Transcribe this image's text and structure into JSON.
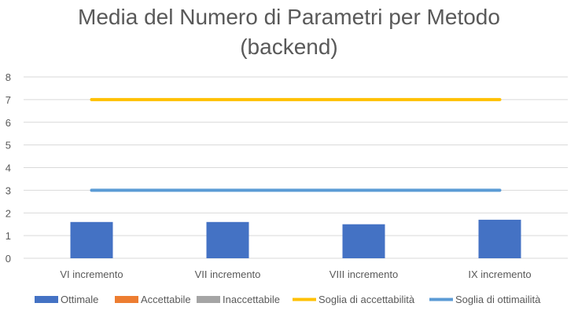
{
  "chart_data": {
    "type": "bar",
    "title": [
      "Media del Numero di Parametri per Metodo",
      "(backend)"
    ],
    "categories": [
      "VI incremento",
      "VII incremento",
      "VIII incremento",
      "IX incremento"
    ],
    "ylim": [
      0,
      8
    ],
    "yticks": [
      0,
      1,
      2,
      3,
      4,
      5,
      6,
      7,
      8
    ],
    "grid": true,
    "legend_position": "bottom",
    "series": [
      {
        "name": "Ottimale",
        "kind": "bar",
        "color": "#4472C4",
        "values": [
          1.6,
          1.6,
          1.5,
          1.7
        ]
      },
      {
        "name": "Accettabile",
        "kind": "bar",
        "color": "#ED7D31",
        "values": [
          0,
          0,
          0,
          0
        ]
      },
      {
        "name": "Inaccettabile",
        "kind": "bar",
        "color": "#A5A5A5",
        "values": [
          0,
          0,
          0,
          0
        ]
      },
      {
        "name": "Soglia di accettabilità",
        "kind": "line",
        "color": "#FFC000",
        "values": [
          7,
          7,
          7,
          7
        ]
      },
      {
        "name": "Soglia di ottimailità",
        "kind": "line",
        "color": "#5B9BD5",
        "values": [
          3,
          3,
          3,
          3
        ]
      }
    ]
  }
}
